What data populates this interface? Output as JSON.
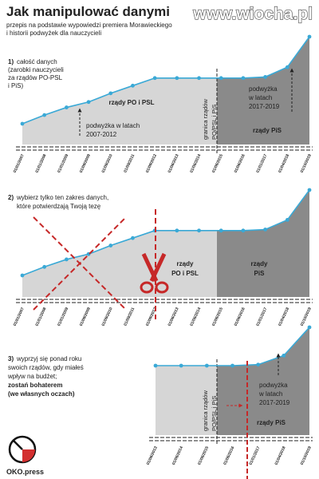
{
  "header": {
    "title": "Jak manipulować danymi",
    "subtitle": [
      "przepis na podstawie wypowiedzi premiera Morawieckiego",
      "i historii podwyżek dla nauczycieli"
    ],
    "watermark": "www.wiocha.pl"
  },
  "steps": [
    {
      "number": "1)",
      "lines": [
        "całość danych",
        "(zarobki nauczycieli",
        "za rządów PO-PSL",
        "i PiS)"
      ]
    },
    {
      "number": "2)",
      "lines": [
        "wybierz tylko ten zakres danych,",
        "które potwierdzają Twoją tezę"
      ]
    },
    {
      "number": "3)",
      "lines": [
        "wyprzyj się ponad roku",
        "swoich rządów, gdy miałeś",
        "wpływ na budżet;"
      ],
      "bold_lines": [
        "zostań bohaterem",
        "(we własnych oczach)"
      ]
    }
  ],
  "chart_data": [
    {
      "type": "line",
      "categories": [
        "01/01/2007",
        "01/01/2008",
        "01/01/2009",
        "01/09/2009",
        "01/09/2010",
        "01/09/2011",
        "01/09/2012",
        "01/06/2013",
        "01/06/2014",
        "01/06/2015",
        "01/06/2016",
        "01/01/2017",
        "01/04/2018",
        "01/10/2019"
      ],
      "values": [
        20,
        28,
        35,
        40,
        48,
        55,
        62,
        62,
        62,
        62,
        62,
        63,
        72,
        100
      ],
      "color": "#3aa9d6",
      "area_color": "#d6d6d6",
      "pis_color": "#8a8a8a",
      "labels": {
        "region_po": [
          "rządy PO i PSL"
        ],
        "region_pis": [
          "rządy PiS"
        ],
        "divider": [
          "granica rządów",
          "PO/PSL i PiS"
        ],
        "raise_po": [
          "podwyżka w latach",
          "2007-2012"
        ],
        "raise_pis": [
          "podwyżka",
          "w latach",
          "2017-2019"
        ]
      }
    },
    {
      "type": "line",
      "categories": [
        "01/01/2007",
        "01/01/2008",
        "01/01/2009",
        "01/09/2009",
        "01/09/2010",
        "01/09/2011",
        "01/09/2012",
        "01/06/2013",
        "01/06/2014",
        "01/06/2015",
        "01/06/2016",
        "01/01/2017",
        "01/04/2018",
        "01/10/2019"
      ],
      "values": [
        20,
        28,
        35,
        40,
        48,
        55,
        62,
        62,
        62,
        62,
        62,
        63,
        72,
        100
      ],
      "color": "#3aa9d6",
      "area_color": "#d6d6d6",
      "pis_color": "#8a8a8a",
      "labels": {
        "region_po": [
          "rządy",
          "PO i PSL"
        ],
        "region_pis": [
          "rządy",
          "PiS"
        ]
      }
    },
    {
      "type": "line",
      "categories": [
        "01/06/2013",
        "01/06/2014",
        "01/06/2015",
        "01/06/2016",
        "01/01/2017",
        "01/04/2018",
        "01/10/2019"
      ],
      "values": [
        62,
        62,
        62,
        62,
        63,
        72,
        100
      ],
      "color": "#3aa9d6",
      "area_color": "#d6d6d6",
      "pis_color": "#8a8a8a",
      "labels": {
        "region_pis": [
          "rządy PiS"
        ],
        "divider": [
          "granica rządów",
          "PO/PSL i PiS"
        ],
        "raise_pis": [
          "podwyżka",
          "w latach",
          "2017-2019"
        ]
      }
    }
  ],
  "logo": "OKO.press"
}
